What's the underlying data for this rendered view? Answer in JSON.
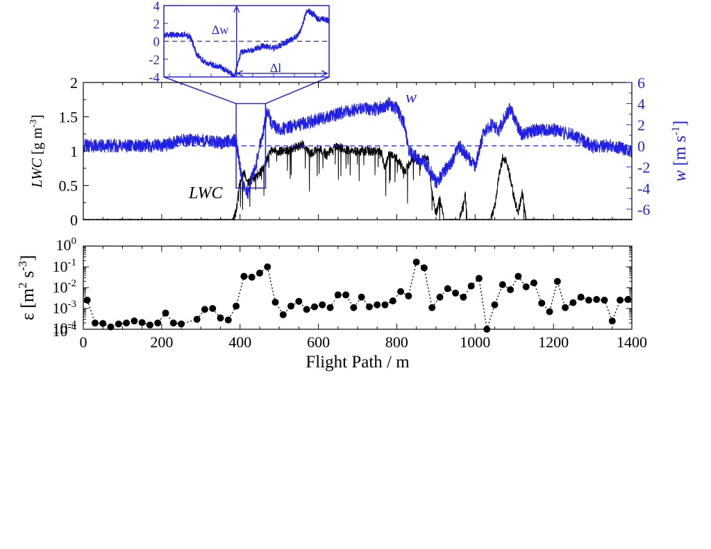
{
  "colors": {
    "lwc": "#000000",
    "w": "#1f1fe6",
    "eps": "#000000"
  },
  "chart_data": [
    {
      "id": "lwc_w_panel",
      "type": "line",
      "xlim": [
        0,
        1400
      ],
      "ylim_left": [
        0,
        2
      ],
      "ylim_right": [
        -7,
        6
      ],
      "xticks_labeled": false,
      "yticks_left": [
        "0",
        "0.5",
        "1",
        "1.5",
        "2"
      ],
      "yticks_right": [
        "-6",
        "-4",
        "-2",
        "0",
        "2",
        "4",
        "6"
      ],
      "ylabel_left": {
        "italic": "LWC",
        "rest": " [g m",
        "sup": "-3",
        "close": "]"
      },
      "ylabel_right": {
        "italic": "w",
        "rest": " [m s",
        "sup": "-1",
        "close": "]"
      },
      "zero_line": "dashed, w = 0",
      "series": [
        {
          "name": "LWC",
          "axis": "left",
          "x": [
            0,
            380,
            390,
            400,
            410,
            420,
            440,
            460,
            470,
            480,
            500,
            520,
            540,
            560,
            580,
            600,
            620,
            640,
            660,
            680,
            700,
            720,
            740,
            760,
            770,
            780,
            800,
            820,
            840,
            860,
            870,
            880,
            890,
            900,
            910,
            920,
            930,
            940,
            960,
            975,
            980,
            1000,
            1020,
            1040,
            1050,
            1060,
            1070,
            1080,
            1090,
            1100,
            1110,
            1120,
            1130,
            1140,
            1200,
            1300,
            1400
          ],
          "y": [
            0,
            0,
            0.1,
            0.6,
            0.7,
            0.55,
            0.62,
            0.75,
            0.9,
            1.0,
            1.0,
            1.0,
            1.05,
            1.1,
            0.95,
            1.05,
            0.95,
            1.05,
            1.05,
            1.0,
            1.0,
            1.0,
            1.0,
            1.0,
            0.75,
            0.95,
            0.9,
            0.7,
            0.9,
            0.85,
            0.9,
            0.9,
            0.4,
            0.1,
            0.3,
            0,
            0,
            0,
            0,
            0.35,
            0,
            0,
            0,
            0,
            0.2,
            0.6,
            0.9,
            0.85,
            0.6,
            0.3,
            0.1,
            0.4,
            0,
            0,
            0,
            0,
            0
          ]
        },
        {
          "name": "w",
          "axis": "right",
          "x": [
            0,
            100,
            200,
            250,
            300,
            350,
            390,
            400,
            410,
            420,
            430,
            440,
            450,
            460,
            470,
            480,
            500,
            550,
            600,
            650,
            700,
            750,
            780,
            800,
            820,
            830,
            850,
            880,
            900,
            920,
            940,
            960,
            980,
            1000,
            1020,
            1040,
            1060,
            1080,
            1090,
            1100,
            1120,
            1150,
            1200,
            1250,
            1300,
            1350,
            1400
          ],
          "y": [
            0,
            0,
            0,
            0.5,
            0.5,
            0.3,
            0.5,
            -2,
            -4,
            -4.5,
            -3,
            -2,
            0,
            1.5,
            3.5,
            2,
            1.5,
            2,
            2.5,
            3,
            3.5,
            3.5,
            4,
            3.5,
            2,
            -0.5,
            -1,
            -2,
            -3.5,
            -2.5,
            -1.5,
            0,
            -1,
            -2,
            1,
            2,
            1.5,
            3,
            3.5,
            2.5,
            1,
            1.5,
            1.5,
            1,
            0,
            0,
            -0.5
          ]
        }
      ]
    },
    {
      "id": "inset",
      "type": "line",
      "xrange_m": [
        390,
        465
      ],
      "ylim": [
        -4,
        4
      ],
      "yticks": [
        "4",
        "2",
        "0",
        "-2",
        "-4"
      ],
      "annotations": {
        "dw": "Δw",
        "dl": "Δl"
      },
      "series": [
        {
          "name": "w",
          "x": [
            390,
            400,
            402,
            405,
            408,
            410,
            415,
            420,
            422,
            423,
            425,
            430,
            435,
            440,
            445,
            450,
            452,
            455,
            458,
            460,
            463,
            465
          ],
          "y": [
            0.7,
            0.7,
            0.5,
            -1.5,
            -2.2,
            -2.5,
            -2.8,
            -3.5,
            -4,
            -3,
            -1.2,
            -1,
            -0.5,
            -0.8,
            -0.2,
            0.5,
            1.2,
            3.5,
            3,
            2.5,
            2.5,
            2.3
          ]
        }
      ]
    },
    {
      "id": "eps_panel",
      "type": "scatter",
      "xlim": [
        0,
        1400
      ],
      "ylim_log10": [
        -4,
        0
      ],
      "xticks": [
        "0",
        "200",
        "400",
        "600",
        "800",
        "1000",
        "1200",
        "1400"
      ],
      "xlabel": "Flight Path / m",
      "ylabel": {
        "base": "ε [m",
        "sup1": "2",
        "mid": " s",
        "sup2": "-3",
        "close": "]"
      },
      "ytick_base": "10",
      "ytick_exponents": [
        "0",
        "-1",
        "-2",
        "-3",
        "-4",
        "-4"
      ],
      "series": [
        {
          "name": "ε",
          "x": [
            10,
            30,
            50,
            70,
            90,
            110,
            130,
            150,
            170,
            190,
            210,
            230,
            250,
            290,
            310,
            330,
            350,
            370,
            390,
            410,
            430,
            450,
            470,
            490,
            510,
            530,
            550,
            570,
            590,
            610,
            630,
            650,
            670,
            690,
            710,
            730,
            750,
            770,
            790,
            810,
            830,
            850,
            870,
            890,
            910,
            930,
            950,
            970,
            990,
            1010,
            1030,
            1050,
            1070,
            1090,
            1110,
            1130,
            1150,
            1170,
            1190,
            1210,
            1230,
            1250,
            1270,
            1290,
            1310,
            1330,
            1350,
            1370,
            1390
          ],
          "y": [
            0.0025,
            0.0002,
            0.00019,
            0.00013,
            0.00018,
            0.0002,
            0.00025,
            0.00021,
            0.00016,
            0.0002,
            0.0006,
            0.0002,
            0.00018,
            0.0003,
            0.0009,
            0.001,
            0.00035,
            0.00028,
            0.0013,
            0.035,
            0.032,
            0.05,
            0.1,
            0.002,
            0.0005,
            0.0013,
            0.0022,
            0.0009,
            0.0012,
            0.0015,
            0.0011,
            0.0045,
            0.0045,
            0.0011,
            0.0035,
            0.0012,
            0.0015,
            0.0015,
            0.0023,
            0.0065,
            0.004,
            0.17,
            0.09,
            0.0011,
            0.0035,
            0.009,
            0.0055,
            0.0035,
            0.012,
            0.028,
            0.0001,
            0.0015,
            0.014,
            0.008,
            0.035,
            0.011,
            0.017,
            0.0018,
            0.0007,
            0.02,
            0.0011,
            0.0019,
            0.0035,
            0.0025,
            0.0027,
            0.0025,
            0.00025,
            0.0025,
            0.0027
          ]
        }
      ]
    }
  ]
}
